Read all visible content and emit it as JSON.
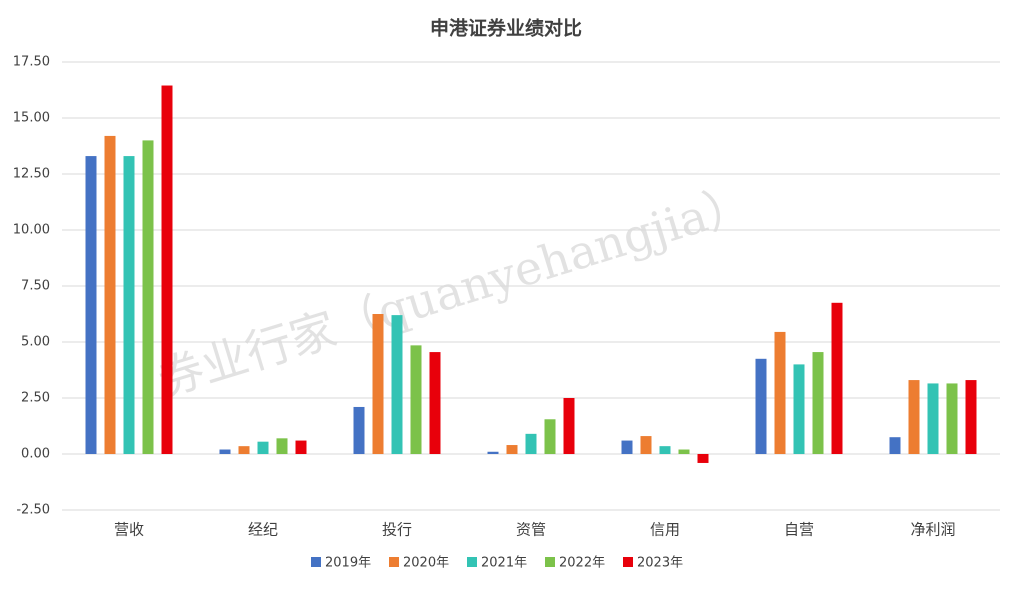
{
  "chart_data": {
    "type": "bar",
    "title": "申港证券业绩对比",
    "categories": [
      "营收",
      "经纪",
      "投行",
      "资管",
      "信用",
      "自营",
      "净利润"
    ],
    "series": [
      {
        "name": "2019年",
        "color": "#4472c4",
        "values": [
          13.3,
          0.2,
          2.1,
          0.1,
          0.6,
          4.25,
          0.75
        ]
      },
      {
        "name": "2020年",
        "color": "#ed7d31",
        "values": [
          14.2,
          0.35,
          6.25,
          0.4,
          0.8,
          5.45,
          3.3
        ]
      },
      {
        "name": "2021年",
        "color": "#33c3b4",
        "values": [
          13.3,
          0.55,
          6.2,
          0.9,
          0.35,
          4.0,
          3.15
        ]
      },
      {
        "name": "2022年",
        "color": "#7cc24a",
        "values": [
          14.0,
          0.7,
          4.85,
          1.55,
          0.2,
          4.55,
          3.15
        ]
      },
      {
        "name": "2023年",
        "color": "#e8000b",
        "values": [
          16.45,
          0.6,
          4.55,
          2.5,
          -0.4,
          6.75,
          3.3
        ]
      }
    ],
    "ylim": [
      -2.5,
      17.5
    ],
    "yticks": [
      {
        "value": -2.5,
        "label": "-2.50"
      },
      {
        "value": 0,
        "label": "0.00"
      },
      {
        "value": 2.5,
        "label": "2.50"
      },
      {
        "value": 5,
        "label": "5.00"
      },
      {
        "value": 7.5,
        "label": "7.50"
      },
      {
        "value": 10,
        "label": "10.00"
      },
      {
        "value": 12.5,
        "label": "12.50"
      },
      {
        "value": 15,
        "label": "15.00"
      },
      {
        "value": 17.5,
        "label": "17.50"
      }
    ],
    "grid": true,
    "legend": "bottom",
    "watermark": "券业行家（quanyehangjia）"
  }
}
